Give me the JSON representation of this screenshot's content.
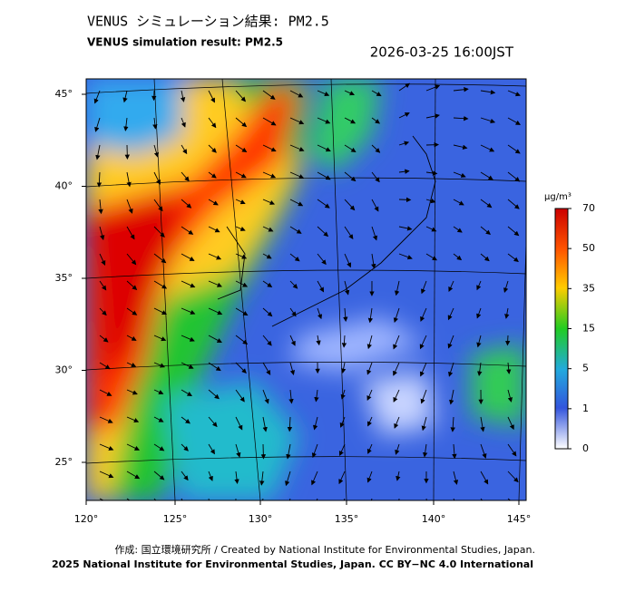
{
  "header": {
    "title_ja": "VENUS シミュレーション結果: PM2.5",
    "title_en": "VENUS simulation result: PM2.5",
    "datetime": "2026-03-25 16:00JST"
  },
  "map": {
    "lat_ticks": [
      "45°",
      "40°",
      "35°",
      "30°",
      "25°"
    ],
    "lon_ticks": [
      "120°",
      "125°",
      "130°",
      "135°",
      "140°",
      "145°"
    ]
  },
  "colorbar": {
    "unit": "μg/m³",
    "ticks": [
      "70",
      "50",
      "35",
      "15",
      "5",
      "1",
      "0"
    ]
  },
  "footer": {
    "credit": "作成: 国立環境研究所 / Created by National Institute for Environmental Studies, Japan.",
    "license": "2025 National Institute for Environmental Studies, Japan. CC BY−NC 4.0 International"
  }
}
